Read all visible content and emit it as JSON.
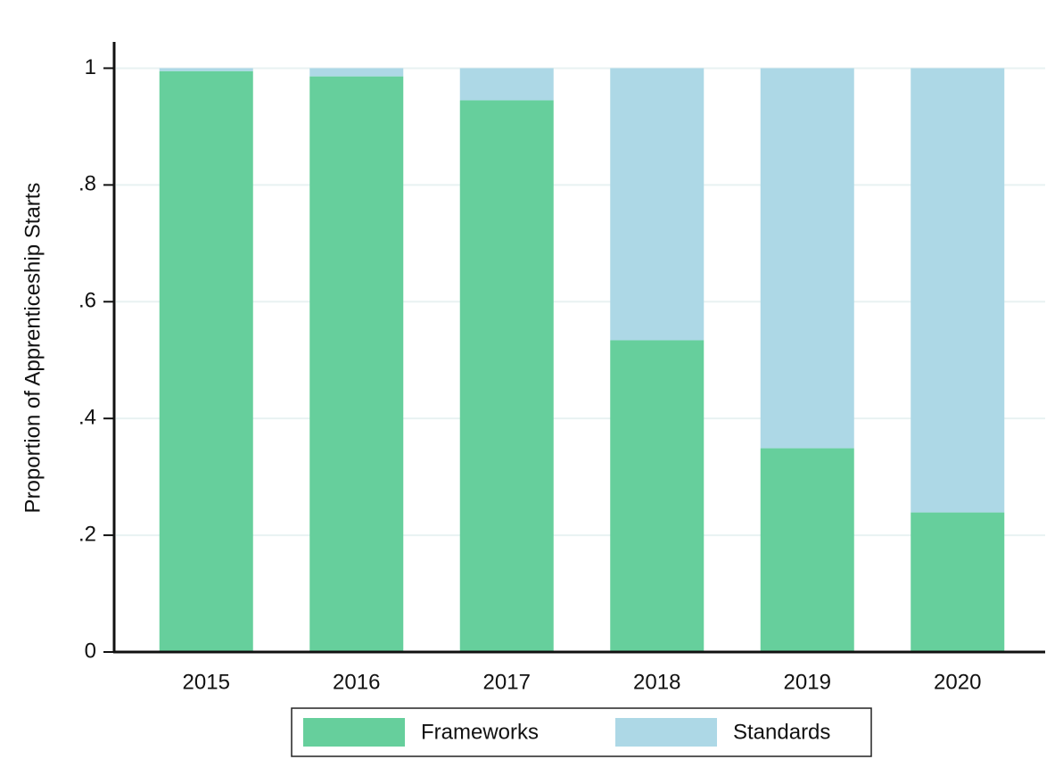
{
  "chart_data": {
    "type": "stacked-bar",
    "y_label": "Proportion of Apprenticeship Starts",
    "categories": [
      "2015",
      "2016",
      "2017",
      "2018",
      "2019",
      "2020"
    ],
    "series": [
      {
        "name": "Frameworks",
        "color": "#66cf9c",
        "values": [
          0.995,
          0.986,
          0.945,
          0.534,
          0.349,
          0.239
        ]
      },
      {
        "name": "Standards",
        "color": "#add8e6",
        "values": [
          0.005,
          0.014,
          0.055,
          0.466,
          0.651,
          0.761
        ]
      }
    ],
    "ylim": [
      0,
      1.045
    ],
    "yticks": [
      0,
      {
        "value": 0.2,
        "label": ".2"
      },
      {
        "value": 0.4,
        "label": ".4"
      },
      {
        "value": 0.6,
        "label": ".6"
      },
      {
        "value": 0.8,
        "label": ".8"
      },
      1
    ],
    "grid": true
  }
}
